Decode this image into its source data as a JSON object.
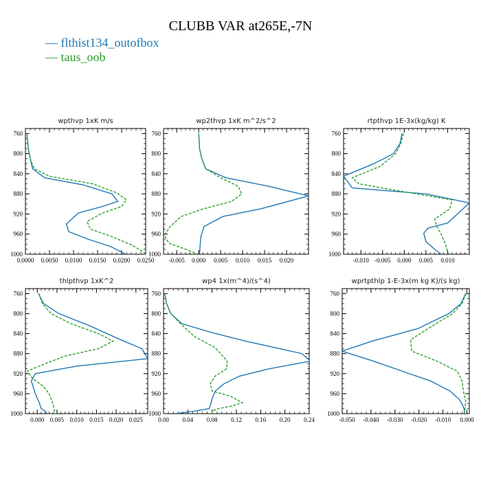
{
  "figure_title": "CLUBB VAR at265E,-7N",
  "colors": {
    "series0": "#1f77b4",
    "series1": "#2ca02c"
  },
  "legend": [
    {
      "label": "flthist134_outofbox",
      "color": "#1f77b4",
      "style": "solid"
    },
    {
      "label": "taus_oob",
      "color": "#2ca02c",
      "style": "dashed"
    }
  ],
  "chart_data": [
    {
      "type": "line",
      "title": "wpthvp  1xK m/s",
      "xlim": [
        0.0,
        0.025
      ],
      "ylim": [
        1000,
        750
      ],
      "xticks": [
        "0.0000",
        "0.0050",
        "0.0100",
        "0.0150",
        "0.0200",
        "0.0250"
      ],
      "xtick_values": [
        0,
        0.005,
        0.01,
        0.015,
        0.02,
        0.025
      ],
      "yticks": [
        "760",
        "800",
        "840",
        "880",
        "920",
        "960",
        "1000"
      ],
      "ytick_values": [
        760,
        800,
        840,
        880,
        920,
        960,
        1000
      ],
      "series": [
        {
          "name": "flthist134_outofbox",
          "x": [
            0.0003,
            0.0006,
            0.001,
            0.0015,
            0.004,
            0.012,
            0.018,
            0.0192,
            0.016,
            0.011,
            0.0085,
            0.009,
            0.013,
            0.0178,
            0.0208
          ],
          "y": [
            760,
            790,
            810,
            830,
            848,
            862,
            880,
            895,
            905,
            918,
            940,
            955,
            970,
            985,
            1000
          ]
        },
        {
          "name": "taus_oob",
          "x": [
            0.0003,
            0.0006,
            0.001,
            0.0018,
            0.005,
            0.014,
            0.019,
            0.021,
            0.02,
            0.016,
            0.0128,
            0.0135,
            0.018,
            0.0222,
            0.0252
          ],
          "y": [
            760,
            790,
            810,
            830,
            845,
            860,
            878,
            892,
            905,
            918,
            935,
            950,
            965,
            982,
            1000
          ]
        }
      ]
    },
    {
      "type": "line",
      "title": "wp2thvp  1xK m^2/s^2",
      "xlim": [
        -0.008,
        0.025
      ],
      "ylim": [
        1000,
        750
      ],
      "xticks": [
        "-0.005",
        "0.000",
        "0.005",
        "0.010",
        "0.015",
        "0.020"
      ],
      "xtick_values": [
        -0.005,
        0,
        0.005,
        0.01,
        0.015,
        0.02
      ],
      "yticks": [
        "760",
        "800",
        "840",
        "880",
        "920",
        "960",
        "1000"
      ],
      "ytick_values": [
        760,
        800,
        840,
        880,
        920,
        960,
        1000
      ],
      "series": [
        {
          "name": "flthist134_outofbox",
          "x": [
            0.0,
            0.0002,
            0.0007,
            0.0016,
            0.0062,
            0.016,
            0.025,
            0.014,
            0.0055,
            0.0012,
            0.0005,
            0.0003,
            0.0002
          ],
          "y": [
            760,
            790,
            810,
            830,
            848,
            865,
            884,
            910,
            925,
            945,
            965,
            985,
            1000
          ]
        },
        {
          "name": "taus_oob",
          "x": [
            0.0,
            0.0002,
            0.0007,
            0.0016,
            0.005,
            0.009,
            0.0098,
            0.0075,
            0.001,
            -0.004,
            -0.0065,
            -0.0078,
            -0.0068,
            -0.003,
            -0.0002
          ],
          "y": [
            760,
            790,
            810,
            830,
            848,
            865,
            880,
            895,
            910,
            925,
            945,
            962,
            978,
            990,
            1000
          ]
        }
      ]
    },
    {
      "type": "line",
      "title": "rtpthvp  1E-3x(kg/kg) K",
      "xlim": [
        -0.014,
        0.015
      ],
      "ylim": [
        1000,
        750
      ],
      "xticks": [
        "-0.010",
        "-0.005",
        "0.000",
        "0.005",
        "0.010"
      ],
      "xtick_values": [
        -0.01,
        -0.005,
        0,
        0.005,
        0.01
      ],
      "yticks": [
        "760",
        "800",
        "840",
        "880",
        "920",
        "960",
        "1000"
      ],
      "ytick_values": [
        760,
        800,
        840,
        880,
        920,
        960,
        1000
      ],
      "series": [
        {
          "name": "flthist134_outofbox",
          "x": [
            -0.0005,
            -0.001,
            -0.0025,
            -0.007,
            -0.014,
            -0.012,
            0.005,
            0.015,
            0.0125,
            0.01,
            0.0055,
            0.0045,
            0.005,
            0.007,
            0.0085
          ],
          "y": [
            760,
            780,
            800,
            820,
            845,
            868,
            880,
            898,
            918,
            938,
            948,
            958,
            975,
            990,
            1000
          ]
        },
        {
          "name": "taus_oob",
          "x": [
            -0.0002,
            -0.0008,
            -0.002,
            -0.0055,
            -0.012,
            -0.0105,
            -0.004,
            0.011,
            0.0105,
            0.007,
            0.0075,
            0.0085,
            0.0095,
            0.0102
          ],
          "y": [
            760,
            780,
            800,
            825,
            848,
            860,
            870,
            892,
            910,
            930,
            945,
            960,
            980,
            1000
          ]
        }
      ]
    },
    {
      "type": "line",
      "title": "thlpthvp  1xK^2",
      "xlim": [
        -0.003,
        0.028
      ],
      "ylim": [
        1000,
        750
      ],
      "xticks": [
        "0.000",
        "0.005",
        "0.010",
        "0.015",
        "0.020",
        "0.025"
      ],
      "xtick_values": [
        0,
        0.005,
        0.01,
        0.015,
        0.02,
        0.025
      ],
      "yticks": [
        "760",
        "800",
        "840",
        "880",
        "920",
        "960",
        "1000"
      ],
      "ytick_values": [
        760,
        800,
        840,
        880,
        920,
        960,
        1000
      ],
      "series": [
        {
          "name": "flthist134_outofbox",
          "x": [
            0.0003,
            0.0016,
            0.0055,
            0.0135,
            0.0205,
            0.0265,
            0.028,
            0.01,
            -0.0005,
            -0.0015,
            -0.0005,
            0.0005,
            0.001,
            0.002,
            0.0025
          ],
          "y": [
            760,
            780,
            800,
            825,
            850,
            870,
            890,
            905,
            920,
            935,
            960,
            978,
            990,
            995,
            1000
          ]
        },
        {
          "name": "taus_oob",
          "x": [
            0.0004,
            0.0013,
            0.0035,
            0.0085,
            0.0155,
            0.0192,
            0.0155,
            0.007,
            0.002,
            -0.0025,
            -0.0012,
            0.0015,
            0.003,
            0.004,
            0.0045
          ],
          "y": [
            760,
            780,
            800,
            820,
            840,
            855,
            870,
            885,
            900,
            915,
            930,
            945,
            960,
            980,
            1000
          ]
        }
      ]
    },
    {
      "type": "line",
      "title": "wp4  1x(m^4)/(s^4)",
      "xlim": [
        0.0,
        0.24
      ],
      "ylim": [
        1000,
        750
      ],
      "xticks": [
        "0.00",
        "0.04",
        "0.08",
        "0.12",
        "0.16",
        "0.20",
        "0.24"
      ],
      "xtick_values": [
        0,
        0.04,
        0.08,
        0.12,
        0.16,
        0.2,
        0.24
      ],
      "yticks": [
        "760",
        "800",
        "840",
        "880",
        "920",
        "960",
        "1000"
      ],
      "ytick_values": [
        760,
        800,
        840,
        880,
        920,
        960,
        1000
      ],
      "series": [
        {
          "name": "flthist134_outofbox",
          "x": [
            0.002,
            0.005,
            0.012,
            0.03,
            0.08,
            0.135,
            0.228,
            0.242,
            0.175,
            0.125,
            0.1,
            0.085,
            0.08,
            0.078,
            0.075,
            0.05,
            0.02
          ],
          "y": [
            760,
            780,
            800,
            820,
            838,
            855,
            880,
            895,
            910,
            925,
            940,
            955,
            970,
            980,
            990,
            995,
            1000
          ]
        },
        {
          "name": "taus_oob",
          "x": [
            0.002,
            0.005,
            0.012,
            0.028,
            0.05,
            0.085,
            0.105,
            0.104,
            0.085,
            0.077,
            0.08,
            0.11,
            0.13,
            0.112,
            0.09,
            0.08,
            0.08
          ],
          "y": [
            760,
            780,
            800,
            820,
            845,
            868,
            895,
            910,
            925,
            940,
            955,
            965,
            978,
            985,
            990,
            995,
            1000
          ]
        }
      ]
    },
    {
      "type": "line",
      "title": "wprtpthlp  1-E-3x(m kg K)/(s kg)",
      "xlim": [
        -0.052,
        0.001
      ],
      "ylim": [
        1000,
        750
      ],
      "xticks": [
        "-0.050",
        "-0.040",
        "-0.030",
        "-0.020",
        "-0.010",
        "0.000"
      ],
      "xtick_values": [
        -0.05,
        -0.04,
        -0.03,
        -0.02,
        -0.01,
        0
      ],
      "yticks": [
        "760",
        "800",
        "840",
        "880",
        "920",
        "960",
        "1000"
      ],
      "ytick_values": [
        760,
        800,
        840,
        880,
        920,
        960,
        1000
      ],
      "series": [
        {
          "name": "flthist134_outofbox",
          "x": [
            -0.0005,
            -0.0025,
            -0.0075,
            -0.0205,
            -0.0395,
            -0.052,
            -0.039,
            -0.027,
            -0.015,
            -0.007,
            -0.0035,
            -0.002,
            -0.0012,
            -0.001
          ],
          "y": [
            760,
            780,
            800,
            830,
            855,
            875,
            895,
            915,
            935,
            955,
            970,
            980,
            990,
            1000
          ]
        },
        {
          "name": "taus_oob",
          "x": [
            -0.0004,
            -0.002,
            -0.006,
            -0.0145,
            -0.0235,
            -0.023,
            -0.0125,
            -0.004,
            -0.002,
            -0.0015,
            -0.0005,
            -0.001
          ],
          "y": [
            760,
            780,
            800,
            825,
            852,
            875,
            895,
            915,
            935,
            955,
            975,
            1000
          ]
        }
      ]
    }
  ]
}
